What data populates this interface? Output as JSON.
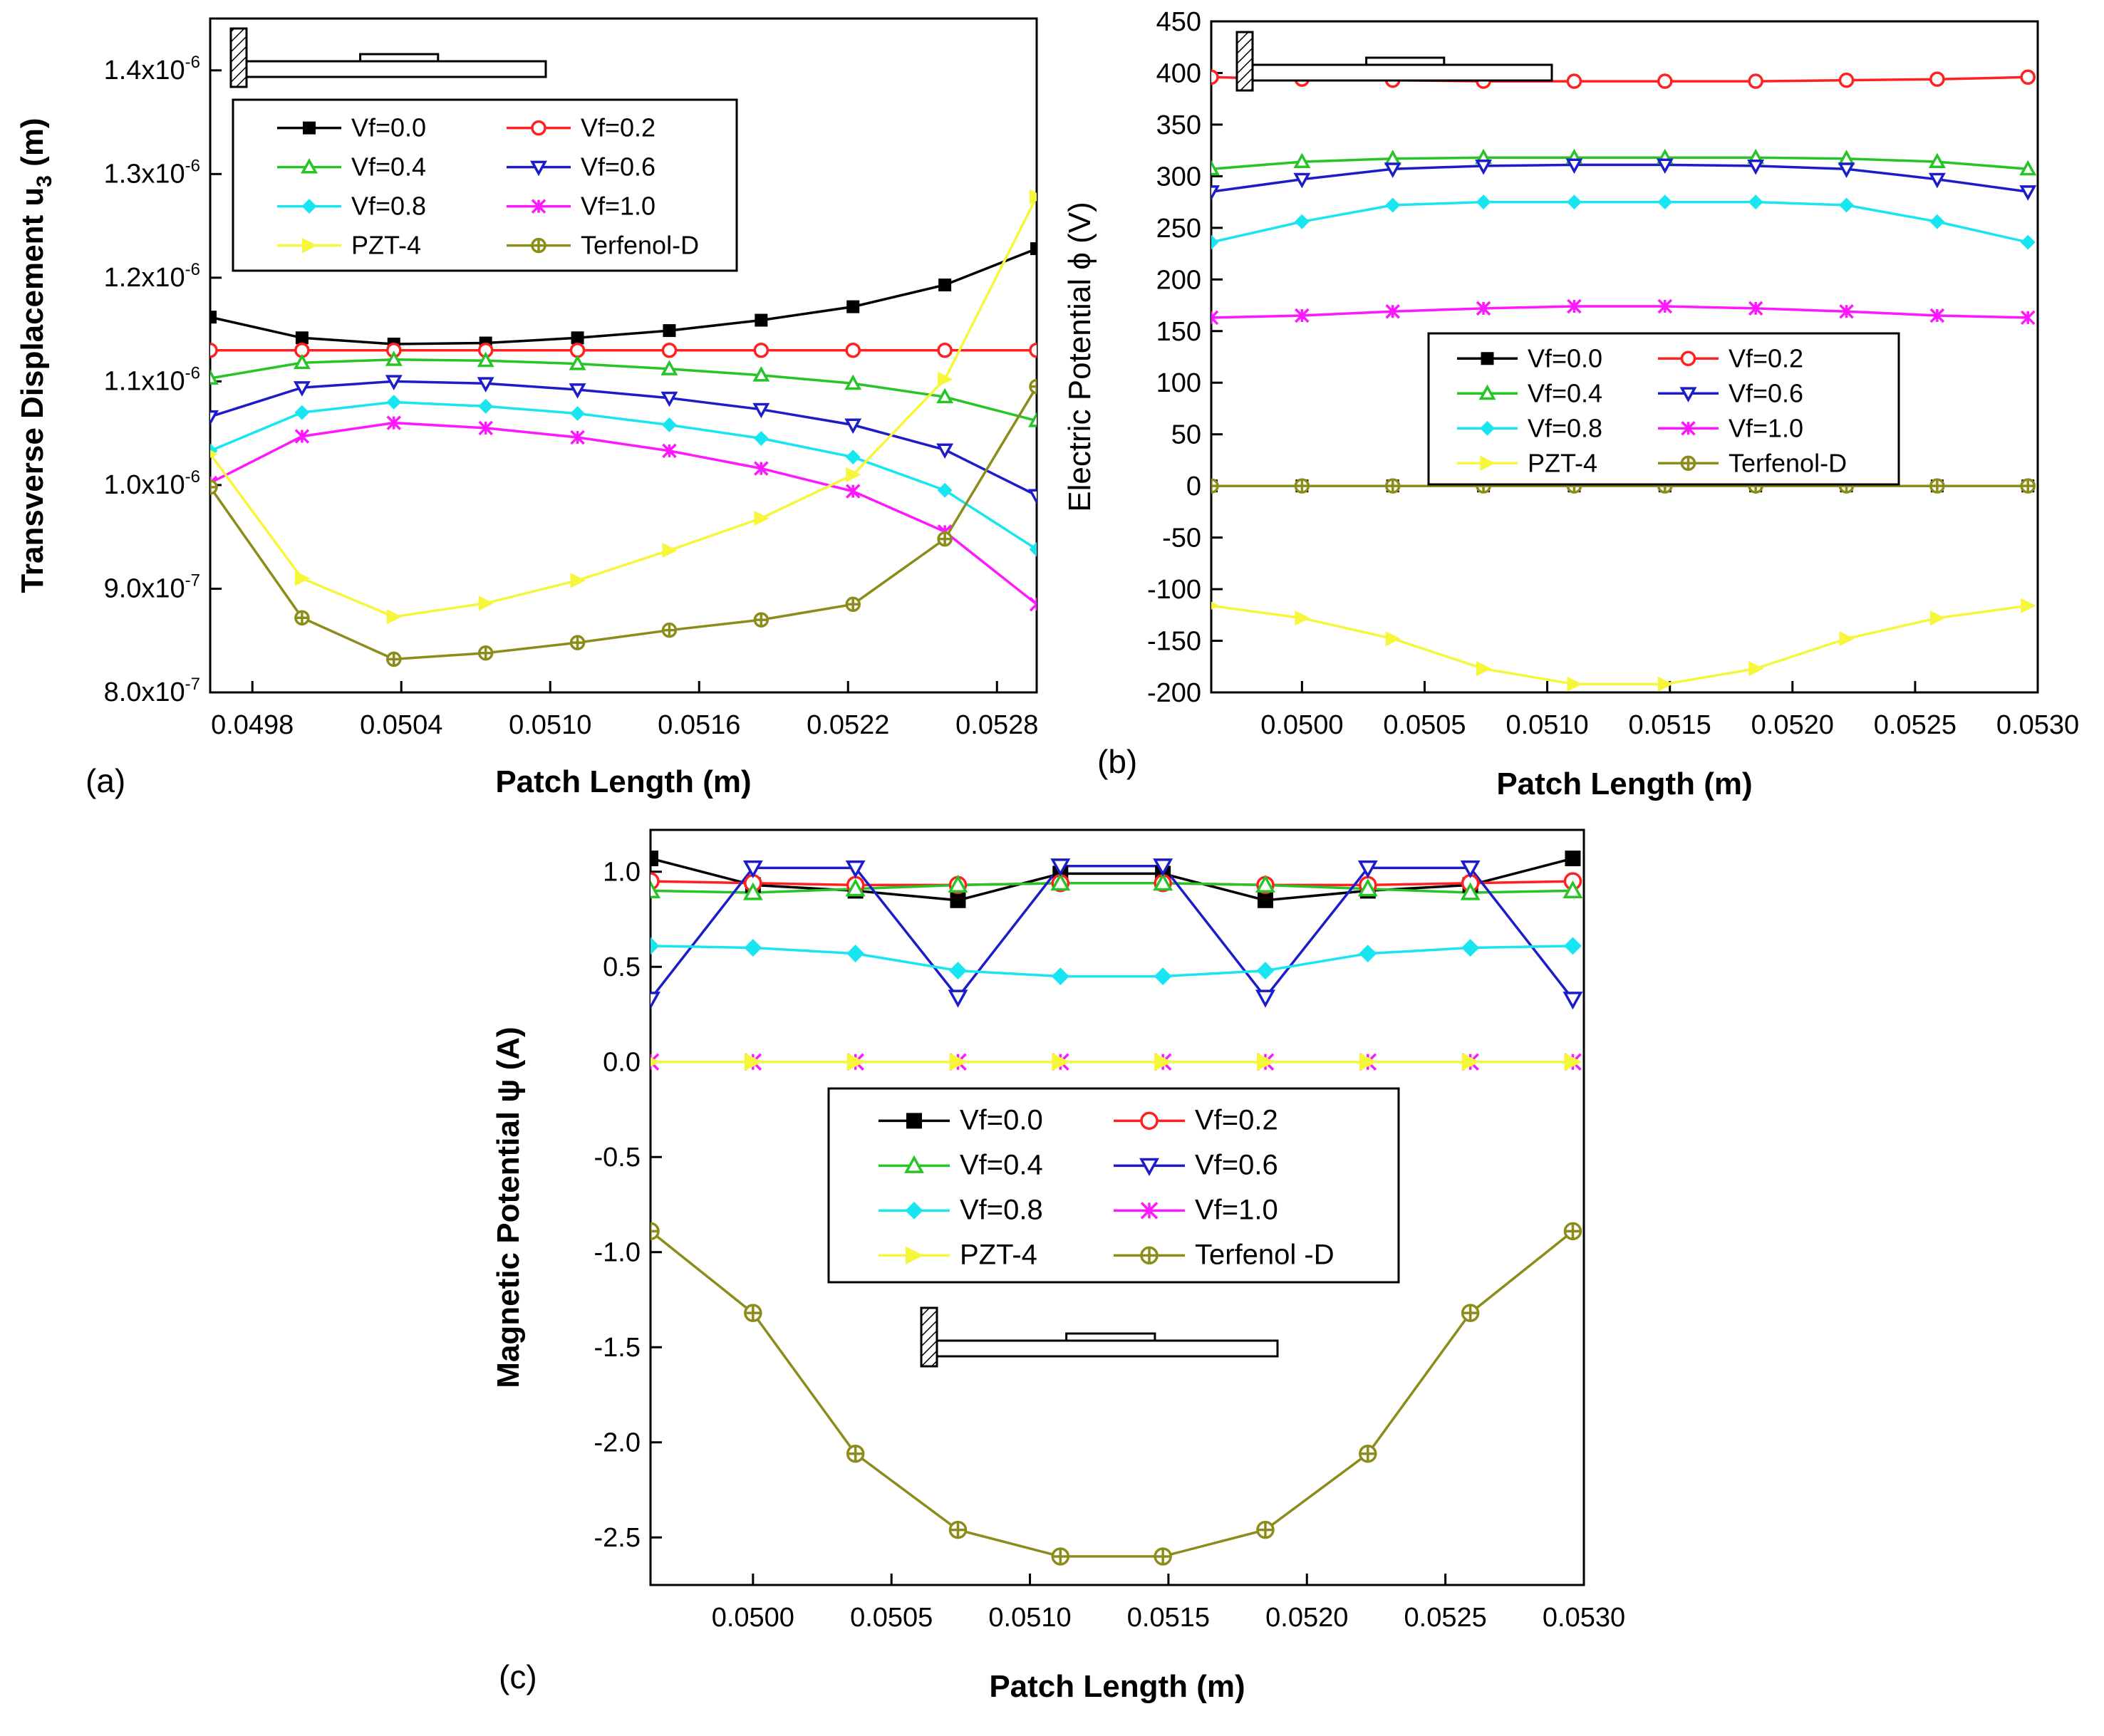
{
  "chart_data": [
    {
      "type": "line",
      "panel": "(a)",
      "xlabel": "Patch Length (m)",
      "ylabel": "Transverse Displacement u",
      "ylabel_sub": "3",
      "ylabel_unit": " (m)",
      "xlim": [
        0.04963,
        0.05296
      ],
      "ylim": [
        8e-07,
        1.45e-06
      ],
      "x_ticks": [
        0.0498,
        0.0504,
        0.051,
        0.0516,
        0.0522,
        0.0528
      ],
      "x_tick_labels": [
        "0.0498",
        "0.0504",
        "0.0510",
        "0.0516",
        "0.0522",
        "0.0528"
      ],
      "y_ticks": [
        {
          "v": 8e-07,
          "m": "8.0x10",
          "e": "-7"
        },
        {
          "v": 9e-07,
          "m": "9.0x10",
          "e": "-7"
        },
        {
          "v": 1e-06,
          "m": "1.0x10",
          "e": "-6"
        },
        {
          "v": 1.1e-06,
          "m": "1.1x10",
          "e": "-6"
        },
        {
          "v": 1.2e-06,
          "m": "1.2x10",
          "e": "-6"
        },
        {
          "v": 1.3e-06,
          "m": "1.3x10",
          "e": "-6"
        },
        {
          "v": 1.4e-06,
          "m": "1.4x10",
          "e": "-6"
        }
      ],
      "legend_position": "top-left",
      "x": [
        0.04963,
        0.05,
        0.05037,
        0.05074,
        0.05111,
        0.05148,
        0.05185,
        0.05222,
        0.05259,
        0.05296
      ],
      "series": [
        {
          "name": "Vf=0.0",
          "values": [
            1.162e-06,
            1.142e-06,
            1.136e-06,
            1.137e-06,
            1.142e-06,
            1.149e-06,
            1.159e-06,
            1.172e-06,
            1.193e-06,
            1.228e-06
          ]
        },
        {
          "name": "Vf=0.2",
          "values": [
            1.13e-06,
            1.13e-06,
            1.13e-06,
            1.13e-06,
            1.13e-06,
            1.13e-06,
            1.13e-06,
            1.13e-06,
            1.13e-06,
            1.13e-06
          ]
        },
        {
          "name": "Vf=0.4",
          "values": [
            1.103e-06,
            1.118e-06,
            1.121e-06,
            1.12e-06,
            1.117e-06,
            1.112e-06,
            1.106e-06,
            1.098e-06,
            1.085e-06,
            1.062e-06
          ]
        },
        {
          "name": "Vf=0.6",
          "values": [
            1.066e-06,
            1.094e-06,
            1.1e-06,
            1.098e-06,
            1.092e-06,
            1.084e-06,
            1.073e-06,
            1.058e-06,
            1.034e-06,
            9.9e-07
          ]
        },
        {
          "name": "Vf=0.8",
          "values": [
            1.033e-06,
            1.07e-06,
            1.08e-06,
            1.076e-06,
            1.069e-06,
            1.058e-06,
            1.045e-06,
            1.027e-06,
            9.95e-07,
            9.38e-07
          ]
        },
        {
          "name": "Vf=1.0",
          "values": [
            1.002e-06,
            1.047e-06,
            1.06e-06,
            1.055e-06,
            1.046e-06,
            1.033e-06,
            1.016e-06,
            9.94e-07,
            9.55e-07,
            8.85e-07
          ]
        },
        {
          "name": "PZT-4",
          "values": [
            1.03e-06,
            9.1e-07,
            8.73e-07,
            8.86e-07,
            9.08e-07,
            9.37e-07,
            9.68e-07,
            1.01e-06,
            1.102e-06,
            1.278e-06
          ]
        },
        {
          "name": "Terfenol-D",
          "values": [
            9.98e-07,
            8.72e-07,
            8.32e-07,
            8.38e-07,
            8.48e-07,
            8.6e-07,
            8.7e-07,
            8.85e-07,
            9.48e-07,
            1.095e-06
          ]
        }
      ]
    },
    {
      "type": "line",
      "panel": "(b)",
      "xlabel": "Patch Length (m)",
      "ylabel": "Electric Potential  ϕ  (V)",
      "xlim": [
        0.04963,
        0.053
      ],
      "ylim": [
        -200,
        450
      ],
      "x_ticks": [
        0.05,
        0.0505,
        0.051,
        0.0515,
        0.052,
        0.0525,
        0.053
      ],
      "x_tick_labels": [
        "0.0500",
        "0.0505",
        "0.0510",
        "0.0515",
        "0.0520",
        "0.0525",
        "0.0530"
      ],
      "y_ticks": [
        -200,
        -150,
        -100,
        -50,
        0,
        50,
        100,
        150,
        200,
        250,
        300,
        350,
        400,
        450
      ],
      "y_tick_labels": [
        "-200",
        "-150",
        "-100",
        "-50",
        "0",
        "50",
        "100",
        "150",
        "200",
        "250",
        "300",
        "350",
        "400",
        "450"
      ],
      "legend_position": "center",
      "x": [
        0.04963,
        0.05,
        0.05037,
        0.05074,
        0.05111,
        0.05148,
        0.05185,
        0.05222,
        0.05259,
        0.05296
      ],
      "series": [
        {
          "name": "Vf=0.0",
          "values": [
            0,
            0,
            0,
            0,
            0,
            0,
            0,
            0,
            0,
            0
          ]
        },
        {
          "name": "Vf=0.2",
          "values": [
            396,
            394,
            393,
            392,
            392,
            392,
            392,
            393,
            394,
            396
          ]
        },
        {
          "name": "Vf=0.4",
          "values": [
            307,
            314,
            317,
            318,
            318,
            318,
            318,
            317,
            314,
            307
          ]
        },
        {
          "name": "Vf=0.6",
          "values": [
            285,
            297,
            307,
            310,
            311,
            311,
            310,
            307,
            297,
            285
          ]
        },
        {
          "name": "Vf=0.8",
          "values": [
            236,
            256,
            272,
            275,
            275,
            275,
            275,
            272,
            256,
            236
          ]
        },
        {
          "name": "Vf=1.0",
          "values": [
            163,
            165,
            169,
            172,
            174,
            174,
            172,
            169,
            165,
            163
          ]
        },
        {
          "name": "PZT-4",
          "values": [
            -116,
            -128,
            -148,
            -177,
            -192,
            -192,
            -177,
            -148,
            -128,
            -116
          ]
        },
        {
          "name": "Terfenol-D",
          "values": [
            0,
            0,
            0,
            0,
            0,
            0,
            0,
            0,
            0,
            0
          ]
        }
      ]
    },
    {
      "type": "line",
      "panel": "(c)",
      "xlabel": "Patch Length (m)",
      "ylabel": "Magnetic Potential  ψ (A)",
      "xlim": [
        0.04963,
        0.053
      ],
      "ylim": [
        -2.75,
        1.22
      ],
      "x_ticks": [
        0.05,
        0.0505,
        0.051,
        0.0515,
        0.052,
        0.0525,
        0.053
      ],
      "x_tick_labels": [
        "0.0500",
        "0.0505",
        "0.0510",
        "0.0515",
        "0.0520",
        "0.0525",
        "0.0530"
      ],
      "y_ticks": [
        -2.5,
        -2.0,
        -1.5,
        -1.0,
        -0.5,
        0.0,
        0.5,
        1.0
      ],
      "y_tick_labels": [
        "-2.5",
        "-2.0",
        "-1.5",
        "-1.0",
        "-0.5",
        "0.0",
        "0.5",
        "1.0"
      ],
      "legend_position": "center",
      "x": [
        0.04963,
        0.05,
        0.05037,
        0.05074,
        0.05111,
        0.05148,
        0.05185,
        0.05222,
        0.05259,
        0.05296
      ],
      "series": [
        {
          "name": "Vf=0.0",
          "values": [
            1.07,
            0.93,
            0.9,
            0.85,
            0.99,
            0.99,
            0.85,
            0.9,
            0.93,
            1.07
          ]
        },
        {
          "name": "Vf=0.2",
          "values": [
            0.95,
            0.94,
            0.93,
            0.93,
            0.94,
            0.94,
            0.93,
            0.93,
            0.94,
            0.95
          ]
        },
        {
          "name": "Vf=0.4",
          "values": [
            0.9,
            0.89,
            0.91,
            0.93,
            0.94,
            0.94,
            0.93,
            0.91,
            0.89,
            0.9
          ]
        },
        {
          "name": "Vf=0.6",
          "values": [
            0.33,
            1.02,
            1.02,
            0.34,
            1.03,
            1.03,
            0.34,
            1.02,
            1.02,
            0.33
          ]
        },
        {
          "name": "Vf=0.8",
          "values": [
            0.61,
            0.6,
            0.57,
            0.48,
            0.45,
            0.45,
            0.48,
            0.57,
            0.6,
            0.61
          ]
        },
        {
          "name": "Vf=1.0",
          "values": [
            0.0,
            0.0,
            0.0,
            0.0,
            0.0,
            0.0,
            0.0,
            0.0,
            0.0,
            0.0
          ]
        },
        {
          "name": "PZT-4",
          "values": [
            0.0,
            0.0,
            0.0,
            0.0,
            0.0,
            0.0,
            0.0,
            0.0,
            0.0,
            0.0
          ]
        },
        {
          "name": "Terfenol -D",
          "values": [
            -0.89,
            -1.32,
            -2.06,
            -2.46,
            -2.6,
            -2.6,
            -2.46,
            -2.06,
            -1.32,
            -0.89
          ]
        }
      ]
    }
  ],
  "series_styles": [
    {
      "color": "#000000",
      "marker": "square"
    },
    {
      "color": "#ff2020",
      "marker": "circle"
    },
    {
      "color": "#27c427",
      "marker": "triangle-up"
    },
    {
      "color": "#1c1cc8",
      "marker": "triangle-down"
    },
    {
      "color": "#17e6f0",
      "marker": "diamond"
    },
    {
      "color": "#ff17ff",
      "marker": "star"
    },
    {
      "color": "#f6f63a",
      "marker": "triangle-right"
    },
    {
      "color": "#8c8c1a",
      "marker": "circle-cross"
    }
  ],
  "inset": "cantilever-beam-with-patch-icon"
}
